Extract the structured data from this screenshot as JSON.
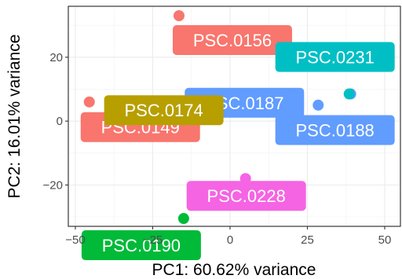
{
  "chart_data": {
    "type": "scatter",
    "title": "",
    "xlabel": "PC1: 60.62% variance",
    "ylabel": "PC2: 16.01% variance",
    "xlim": [
      -50,
      50
    ],
    "ylim": [
      -30,
      33
    ],
    "grid": true,
    "x_ticks": [
      -50,
      -25,
      0,
      25,
      50
    ],
    "x_tick_labels": [
      "−50",
      "−25",
      "0",
      "25",
      "50"
    ],
    "y_ticks": [
      -20,
      0,
      20
    ],
    "y_tick_labels": [
      "−20",
      "0",
      "20"
    ],
    "points": [
      {
        "label": "PSC.0156",
        "x": -16.5,
        "y": 33.0,
        "color": "#F8766D"
      },
      {
        "label": "PSC.0188",
        "x": 39.0,
        "y": 8.5,
        "color": "#619CFF"
      },
      {
        "label": "PSC.0149",
        "x": -45.5,
        "y": 6.0,
        "color": "#F8766D"
      },
      {
        "label": "PSC.0187",
        "x": 28.5,
        "y": 5.0,
        "color": "#619CFF"
      },
      {
        "label": "PSC.0231",
        "x": 38.5,
        "y": 8.5,
        "color": "#00BFC4"
      },
      {
        "label": "PSC.0174",
        "x": -44.0,
        "y": -2.0,
        "color": "#B79F00"
      },
      {
        "label": "PSC.0228",
        "x": 5.0,
        "y": -18.0,
        "color": "#F564E3"
      },
      {
        "label": "PSC.0190",
        "x": -15.0,
        "y": -30.5,
        "color": "#00BA38"
      }
    ]
  }
}
